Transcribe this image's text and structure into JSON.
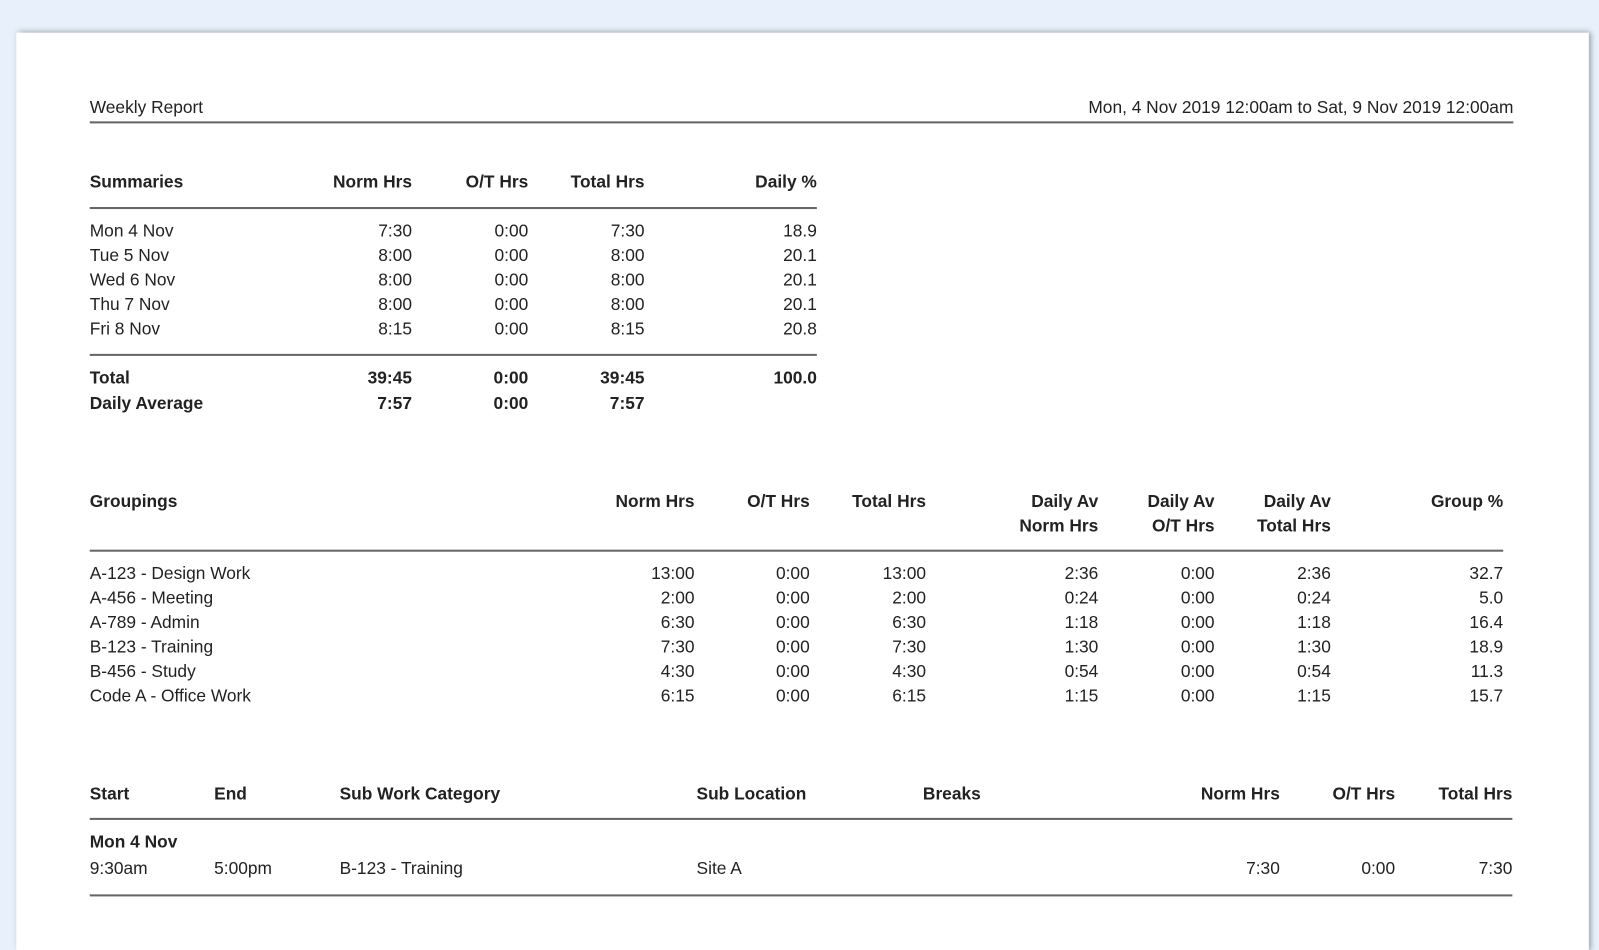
{
  "report": {
    "title": "Weekly Report",
    "date_range": "Mon, 4 Nov 2019  12:00am  to  Sat, 9 Nov 2019  12:00am"
  },
  "summaries": {
    "headers": [
      "Summaries",
      "Norm Hrs",
      "O/T Hrs",
      "Total Hrs",
      "Daily %"
    ],
    "rows": [
      [
        "Mon 4 Nov",
        "7:30",
        "0:00",
        "7:30",
        "18.9"
      ],
      [
        "Tue 5 Nov",
        "8:00",
        "0:00",
        "8:00",
        "20.1"
      ],
      [
        "Wed 6 Nov",
        "8:00",
        "0:00",
        "8:00",
        "20.1"
      ],
      [
        "Thu 7 Nov",
        "8:00",
        "0:00",
        "8:00",
        "20.1"
      ],
      [
        "Fri 8 Nov",
        "8:15",
        "0:00",
        "8:15",
        "20.8"
      ]
    ],
    "total": [
      "Total",
      "39:45",
      "0:00",
      "39:45",
      "100.0"
    ],
    "average": [
      "Daily Average",
      "7:57",
      "0:00",
      "7:57"
    ]
  },
  "groupings": {
    "headers": [
      "Groupings",
      "Norm Hrs",
      "O/T Hrs",
      "Total Hrs",
      "Daily Av",
      "Daily Av",
      "Daily Av",
      "Group %"
    ],
    "headers2": [
      "Norm Hrs",
      "O/T Hrs",
      "Total Hrs"
    ],
    "rows": [
      [
        "A-123 - Design Work",
        "13:00",
        "0:00",
        "13:00",
        "2:36",
        "0:00",
        "2:36",
        "32.7"
      ],
      [
        "A-456 - Meeting",
        "2:00",
        "0:00",
        "2:00",
        "0:24",
        "0:00",
        "0:24",
        "5.0"
      ],
      [
        "A-789 - Admin",
        "6:30",
        "0:00",
        "6:30",
        "1:18",
        "0:00",
        "1:18",
        "16.4"
      ],
      [
        "B-123 - Training",
        "7:30",
        "0:00",
        "7:30",
        "1:30",
        "0:00",
        "1:30",
        "18.9"
      ],
      [
        "B-456 - Study",
        "4:30",
        "0:00",
        "4:30",
        "0:54",
        "0:00",
        "0:54",
        "11.3"
      ],
      [
        "Code A - Office Work",
        "6:15",
        "0:00",
        "6:15",
        "1:15",
        "0:00",
        "1:15",
        "15.7"
      ]
    ]
  },
  "details": {
    "headers": [
      "Start",
      "End",
      "Sub Work Category",
      "Sub Location",
      "Breaks",
      "Norm Hrs",
      "O/T Hrs",
      "Total Hrs"
    ],
    "day": "Mon 4 Nov",
    "rows": [
      [
        "9:30am",
        "5:00pm",
        "B-123 - Training",
        "Site A",
        "",
        "7:30",
        "0:00",
        "7:30"
      ]
    ]
  }
}
